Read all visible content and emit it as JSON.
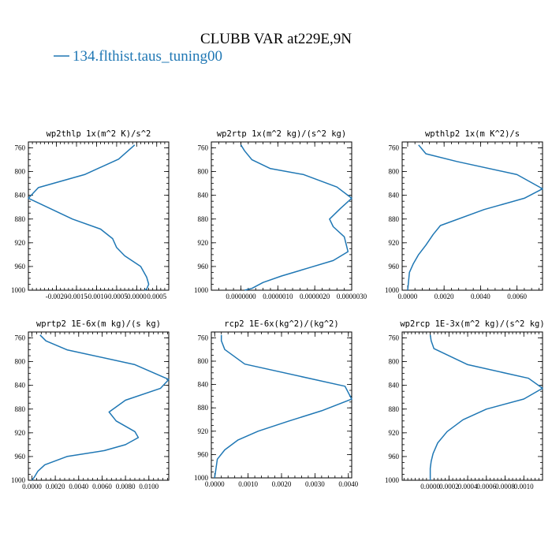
{
  "figure": {
    "title": "CLUBB VAR at229E,9N",
    "legend": [
      {
        "label": "134.flthist.taus_tuning00",
        "color": "#1f77b4"
      }
    ]
  },
  "chart_data": [
    {
      "type": "line",
      "title": "wp2thlp  1x(m^2 K)/s^2",
      "xlim": [
        -0.0027,
        0.0008
      ],
      "ylim": [
        1000,
        750
      ],
      "xticks": [
        -0.002,
        -0.0015,
        -0.001,
        -0.0005,
        0.0,
        0.0005
      ],
      "xtick_labels": [
        "-0.0020",
        "-0.0015",
        "-0.0010",
        "-0.0005",
        "0.0000",
        "0.0005"
      ],
      "yticks": [
        760,
        800,
        840,
        880,
        920,
        960,
        1000
      ],
      "ytick_labels": [
        "760",
        "800",
        "840",
        "880",
        "920",
        "960",
        "1000"
      ],
      "series": [
        {
          "color": "#1f77b4",
          "x": [
            -5e-05,
            -0.00045,
            -0.0013,
            -0.00245,
            -0.0027,
            -0.0016,
            -0.0009,
            -0.0006,
            -0.0005,
            -0.0003,
            0.0001,
            0.00025,
            0.0003,
            0.00025,
            0.0002
          ],
          "y": [
            755,
            779,
            805,
            827,
            845,
            880,
            897,
            913,
            928,
            942,
            960,
            978,
            990,
            998,
            1000
          ]
        }
      ]
    },
    {
      "type": "line",
      "title": "wp2rtp  1x(m^2 kg)/(s^2 kg)",
      "xlim": [
        -8e-07,
        3e-06
      ],
      "ylim": [
        1000,
        750
      ],
      "xticks": [
        0.0,
        1e-06,
        2e-06,
        3e-06
      ],
      "xtick_labels": [
        "0.0000000",
        "0.0000010",
        "0.0000020",
        "0.0000030"
      ],
      "yticks": [
        760,
        800,
        840,
        880,
        920,
        960,
        1000
      ],
      "ytick_labels": [
        "760",
        "800",
        "840",
        "880",
        "920",
        "960",
        "1000"
      ],
      "series": [
        {
          "color": "#1f77b4",
          "x": [
            0.0,
            1e-07,
            3e-07,
            8e-07,
            1.7e-06,
            2.6e-06,
            3e-06,
            2.7e-06,
            2.4e-06,
            2.5e-06,
            2.8e-06,
            2.9e-06,
            2.5e-06,
            1.8e-06,
            1.1e-06,
            6e-07,
            3e-07,
            1e-07
          ],
          "y": [
            755,
            765,
            780,
            795,
            805,
            826,
            845,
            862,
            880,
            893,
            910,
            935,
            950,
            963,
            976,
            987,
            997,
            1000
          ]
        }
      ]
    },
    {
      "type": "line",
      "title": "wpthlp2  1x(m K^2)/s",
      "xlim": [
        -0.0003,
        0.0074
      ],
      "ylim": [
        1000,
        750
      ],
      "xticks": [
        0.0,
        0.002,
        0.004,
        0.006
      ],
      "xtick_labels": [
        "0.0000",
        "0.0020",
        "0.0040",
        "0.0060"
      ],
      "yticks": [
        760,
        800,
        840,
        880,
        920,
        960,
        1000
      ],
      "ytick_labels": [
        "760",
        "800",
        "840",
        "880",
        "920",
        "960",
        "1000"
      ],
      "series": [
        {
          "color": "#1f77b4",
          "x": [
            0.0006,
            0.001,
            0.0027,
            0.006,
            0.0074,
            0.0064,
            0.0042,
            0.0018,
            0.0014,
            0.001,
            0.0006,
            0.0003,
            0.0001,
            5e-05,
            2e-05,
            0.0
          ],
          "y": [
            755,
            770,
            783,
            805,
            829,
            845,
            864,
            891,
            906,
            924,
            940,
            956,
            970,
            985,
            995,
            1000
          ]
        }
      ]
    },
    {
      "type": "line",
      "title": "wprtp2  1E-6x(m kg)/(s kg)",
      "xlim": [
        -0.0003,
        0.0117
      ],
      "ylim": [
        1000,
        750
      ],
      "xticks": [
        0.0,
        0.002,
        0.004,
        0.006,
        0.008,
        0.01
      ],
      "xtick_labels": [
        "0.0000",
        "0.0020",
        "0.0040",
        "0.0060",
        "0.0080",
        "0.0100"
      ],
      "yticks": [
        760,
        800,
        840,
        880,
        920,
        960,
        1000
      ],
      "ytick_labels": [
        "760",
        "800",
        "840",
        "880",
        "920",
        "960",
        "1000"
      ],
      "series": [
        {
          "color": "#1f77b4",
          "x": [
            0.0007,
            0.0012,
            0.003,
            0.0088,
            0.0117,
            0.011,
            0.008,
            0.0066,
            0.0072,
            0.0088,
            0.0091,
            0.008,
            0.0062,
            0.003,
            0.0011,
            0.0005,
            0.0002,
            0.0
          ],
          "y": [
            755,
            765,
            780,
            805,
            830,
            845,
            865,
            885,
            900,
            918,
            928,
            940,
            950,
            960,
            974,
            985,
            995,
            1000
          ]
        }
      ]
    },
    {
      "type": "line",
      "title": "rcp2  1E-6x(kg^2)/(kg^2)",
      "xlim": [
        -0.0001,
        0.0041
      ],
      "ylim": [
        1000,
        750
      ],
      "xticks": [
        0.0,
        0.001,
        0.002,
        0.003,
        0.004
      ],
      "xtick_labels": [
        "0.0000",
        "0.0010",
        "0.0020",
        "0.0030",
        "0.0040"
      ],
      "yticks": [
        760,
        800,
        840,
        880,
        920,
        960,
        1000
      ],
      "ytick_labels": [
        "760",
        "800",
        "840",
        "880",
        "920",
        "960",
        "1000"
      ],
      "series": [
        {
          "color": "#1f77b4",
          "x": [
            0.0002,
            0.0002,
            0.0003,
            0.0009,
            0.0039,
            0.0041,
            0.0032,
            0.0022,
            0.0013,
            0.0007,
            0.0003,
            8e-05,
            0.0
          ],
          "y": [
            755,
            765,
            780,
            805,
            843,
            865,
            885,
            903,
            920,
            935,
            952,
            968,
            1000
          ]
        }
      ]
    },
    {
      "type": "line",
      "title": "wp2rcp  1E-3x(m^2 kg)/(s^2 kg)",
      "xlim": [
        -0.0003,
        0.0012
      ],
      "ylim": [
        1000,
        750
      ],
      "xticks": [
        0.0,
        0.0002,
        0.0004,
        0.0006,
        0.0008,
        0.001
      ],
      "xtick_labels": [
        "0.0000",
        "0.0002",
        "0.0004",
        "0.0006",
        "0.0008",
        "0.0010"
      ],
      "yticks": [
        760,
        800,
        840,
        880,
        920,
        960,
        1000
      ],
      "ytick_labels": [
        "760",
        "800",
        "840",
        "880",
        "920",
        "960",
        "1000"
      ],
      "series": [
        {
          "color": "#1f77b4",
          "x": [
            0.0,
            1e-05,
            4e-05,
            0.0004,
            0.00105,
            0.0012,
            0.001,
            0.0006,
            0.00035,
            0.00018,
            8e-05,
            3e-05,
            1e-05,
            0.0,
            0.0
          ],
          "y": [
            755,
            765,
            778,
            805,
            828,
            845,
            863,
            880,
            898,
            918,
            937,
            955,
            968,
            980,
            1000
          ]
        }
      ]
    }
  ]
}
